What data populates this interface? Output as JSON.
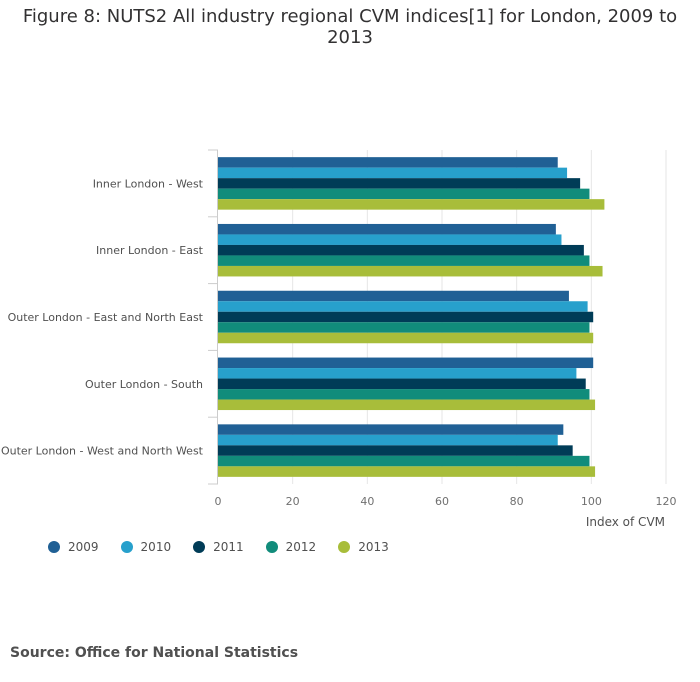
{
  "title": "Figure 8: NUTS2 All industry regional CVM indices[1] for London, 2009 to 2013",
  "source": "Source: Office for National Statistics",
  "chart_data": {
    "type": "bar",
    "orientation": "horizontal",
    "title": "Figure 8: NUTS2 All industry regional CVM indices[1] for London, 2009 to 2013",
    "xlabel": "Index of CVM",
    "ylabel": "",
    "xlim": [
      0,
      120
    ],
    "xticks": [
      0,
      20,
      40,
      60,
      80,
      100,
      120
    ],
    "grid": true,
    "legend_position": "bottom-left",
    "categories": [
      "Inner London - West",
      "Inner London - East",
      "Outer London - East and North East",
      "Outer London - South",
      "Outer London - West and North West"
    ],
    "series": [
      {
        "name": "2009",
        "color": "#206095",
        "values": [
          91,
          90.5,
          94,
          100.5,
          92.5
        ]
      },
      {
        "name": "2010",
        "color": "#27a0cc",
        "values": [
          93.5,
          92,
          99,
          96,
          91
        ]
      },
      {
        "name": "2011",
        "color": "#003c57",
        "values": [
          97,
          98,
          100.5,
          98.5,
          95
        ]
      },
      {
        "name": "2012",
        "color": "#118c7b",
        "values": [
          99.5,
          99.5,
          99.5,
          99.5,
          99.5
        ]
      },
      {
        "name": "2013",
        "color": "#a8bd3a",
        "values": [
          103.5,
          103,
          100.5,
          101,
          101
        ]
      }
    ]
  }
}
